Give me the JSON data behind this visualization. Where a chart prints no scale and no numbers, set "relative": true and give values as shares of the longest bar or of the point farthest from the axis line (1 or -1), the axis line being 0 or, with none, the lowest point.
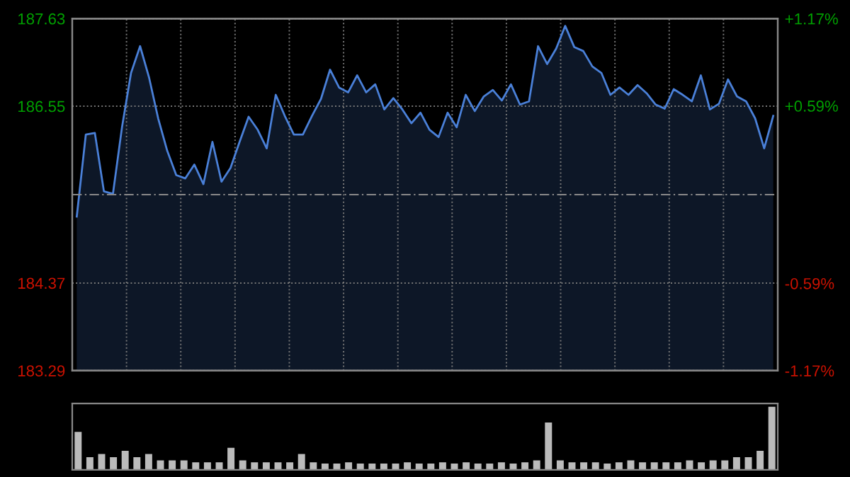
{
  "chart_data": [
    {
      "type": "area",
      "categories": [
        null,
        null,
        null,
        null,
        null,
        null,
        null,
        null,
        null,
        null,
        null,
        null,
        null,
        null,
        null,
        null,
        null,
        null,
        null,
        null,
        null,
        null,
        null,
        null,
        null,
        null,
        null,
        null,
        null,
        null,
        null,
        null,
        null,
        null,
        null,
        null,
        null,
        null,
        null,
        null,
        null,
        null,
        null,
        null,
        null,
        null,
        null,
        null,
        null,
        null,
        null,
        null,
        null,
        null,
        null,
        null,
        null,
        null,
        null,
        null,
        null,
        null,
        null,
        null,
        null,
        null,
        null,
        null,
        null,
        null,
        null,
        null,
        null,
        null,
        null,
        null,
        null,
        null
      ],
      "series": [
        {
          "color": "#4a80d8",
          "values": [
            185.19,
            186.2,
            186.22,
            185.5,
            185.47,
            186.29,
            186.96,
            187.29,
            186.9,
            186.4,
            186.0,
            185.7,
            185.66,
            185.83,
            185.59,
            186.11,
            185.62,
            185.79,
            186.11,
            186.42,
            186.26,
            186.03,
            186.69,
            186.43,
            186.2,
            186.2,
            186.43,
            186.64,
            187.0,
            186.78,
            186.72,
            186.93,
            186.72,
            186.82,
            186.51,
            186.65,
            186.51,
            186.34,
            186.47,
            186.26,
            186.17,
            186.47,
            186.29,
            186.69,
            186.49,
            186.67,
            186.75,
            186.62,
            186.82,
            186.57,
            186.61,
            187.29,
            187.07,
            187.26,
            187.54,
            187.28,
            187.23,
            187.04,
            186.96,
            186.69,
            186.78,
            186.69,
            186.81,
            186.71,
            186.57,
            186.52,
            186.76,
            186.69,
            186.61,
            186.93,
            186.51,
            186.58,
            186.88,
            186.67,
            186.61,
            186.4,
            186.03,
            186.43
          ]
        }
      ],
      "ylim": [
        183.29,
        187.63
      ],
      "yticks": [
        183.29,
        184.37,
        186.55,
        187.63
      ],
      "y2lim": [
        -1.17,
        1.17
      ],
      "y2ticks": [
        {
          "value": -1.17,
          "label": "-1.17%"
        },
        {
          "value": -0.59,
          "label": "-0.59%"
        },
        {
          "value": 0.59,
          "label": "+0.59%"
        },
        {
          "value": 1.17,
          "label": "+1.17%"
        }
      ],
      "ref_lines": [
        {
          "axis": "y",
          "value": 185.46,
          "line_style": "dashed",
          "color": "#888888"
        }
      ],
      "grid": true
    },
    {
      "type": "bar",
      "relative": true,
      "categories": [
        null,
        null,
        null,
        null,
        null,
        null,
        null,
        null,
        null,
        null,
        null,
        null,
        null,
        null,
        null,
        null,
        null,
        null,
        null,
        null,
        null,
        null,
        null,
        null,
        null,
        null,
        null,
        null,
        null,
        null,
        null,
        null,
        null,
        null,
        null,
        null,
        null,
        null,
        null,
        null,
        null,
        null,
        null,
        null,
        null,
        null,
        null,
        null,
        null,
        null,
        null,
        null,
        null,
        null,
        null,
        null,
        null,
        null,
        null,
        null
      ],
      "values": [
        0.6,
        0.2,
        0.25,
        0.2,
        0.3,
        0.2,
        0.25,
        0.15,
        0.15,
        0.15,
        0.12,
        0.12,
        0.12,
        0.35,
        0.15,
        0.12,
        0.12,
        0.12,
        0.12,
        0.25,
        0.12,
        0.1,
        0.1,
        0.12,
        0.1,
        0.1,
        0.1,
        0.1,
        0.12,
        0.1,
        0.1,
        0.12,
        0.1,
        0.12,
        0.1,
        0.1,
        0.12,
        0.1,
        0.12,
        0.15,
        0.75,
        0.15,
        0.12,
        0.12,
        0.12,
        0.1,
        0.12,
        0.15,
        0.12,
        0.12,
        0.12,
        0.12,
        0.15,
        0.12,
        0.15,
        0.15,
        0.2,
        0.2,
        0.3,
        1.0
      ],
      "color": "#bbbbbb"
    }
  ]
}
